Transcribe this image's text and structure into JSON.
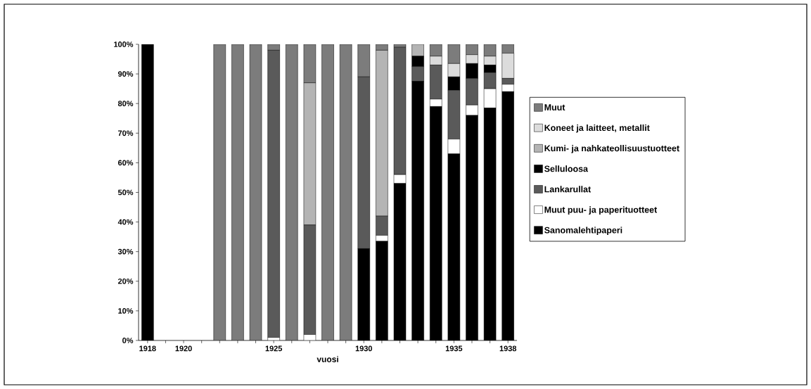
{
  "chart_data": {
    "type": "bar",
    "stacked": true,
    "xlabel": "vuosi",
    "categories": [
      "1918",
      null,
      "1920",
      null,
      null,
      null,
      null,
      "1925",
      null,
      null,
      null,
      null,
      "1930",
      null,
      null,
      null,
      null,
      "1935",
      null,
      null,
      "1938"
    ],
    "ylim": [
      0,
      100
    ],
    "yticks": [
      {
        "value": 0,
        "label": "0%"
      },
      {
        "value": 10,
        "label": "10%"
      },
      {
        "value": 20,
        "label": "20%"
      },
      {
        "value": 30,
        "label": "30%"
      },
      {
        "value": 40,
        "label": "40%"
      },
      {
        "value": 50,
        "label": "50%"
      },
      {
        "value": 60,
        "label": "60%"
      },
      {
        "value": 70,
        "label": "70%"
      },
      {
        "value": 80,
        "label": "80%"
      },
      {
        "value": 90,
        "label": "90%"
      },
      {
        "value": 100,
        "label": "100%"
      }
    ],
    "legend": "right",
    "grid": false,
    "series": [
      {
        "name": "Sanomalehtipaperi",
        "color": "#000000",
        "values": [
          100,
          null,
          null,
          null,
          null,
          null,
          null,
          null,
          null,
          null,
          null,
          null,
          31,
          33.5,
          53,
          87.5,
          79,
          63,
          76,
          78.5,
          84
        ]
      },
      {
        "name": "Muut puu- ja paperituotteet",
        "color": "#ffffff",
        "values": [
          null,
          null,
          null,
          null,
          null,
          null,
          null,
          1,
          null,
          2,
          null,
          null,
          null,
          2,
          3,
          null,
          2.5,
          5,
          3.5,
          6.5,
          2.5
        ]
      },
      {
        "name": "Lankarullat",
        "color": "#5a5a5a",
        "values": [
          null,
          null,
          null,
          null,
          null,
          null,
          null,
          97,
          null,
          37,
          null,
          null,
          58,
          6.5,
          43,
          5,
          11.5,
          16.5,
          9,
          5.5,
          2
        ]
      },
      {
        "name": "Selluloosa",
        "color": "#000000",
        "values": [
          null,
          null,
          null,
          null,
          null,
          null,
          null,
          null,
          null,
          null,
          null,
          null,
          null,
          null,
          null,
          3.5,
          null,
          4.5,
          5,
          2.5,
          null
        ]
      },
      {
        "name": "Kumi- ja nahkateollisuustuotteet",
        "color": "#b4b4b4",
        "values": [
          null,
          null,
          null,
          null,
          null,
          null,
          null,
          null,
          null,
          48,
          null,
          null,
          null,
          56,
          null,
          4,
          null,
          null,
          null,
          null,
          null
        ]
      },
      {
        "name": "Koneet ja laitteet, metallit",
        "color": "#dcdcdc",
        "values": [
          null,
          null,
          null,
          null,
          null,
          null,
          null,
          null,
          null,
          null,
          null,
          null,
          null,
          null,
          null,
          null,
          3,
          4.5,
          3,
          3,
          8.5
        ]
      },
      {
        "name": "Muut",
        "color": "#7c7c7c",
        "values": [
          null,
          null,
          null,
          null,
          100,
          100,
          100,
          2,
          100,
          13,
          100,
          100,
          11,
          2,
          1,
          null,
          4,
          6.5,
          3.5,
          4,
          3
        ]
      }
    ]
  }
}
